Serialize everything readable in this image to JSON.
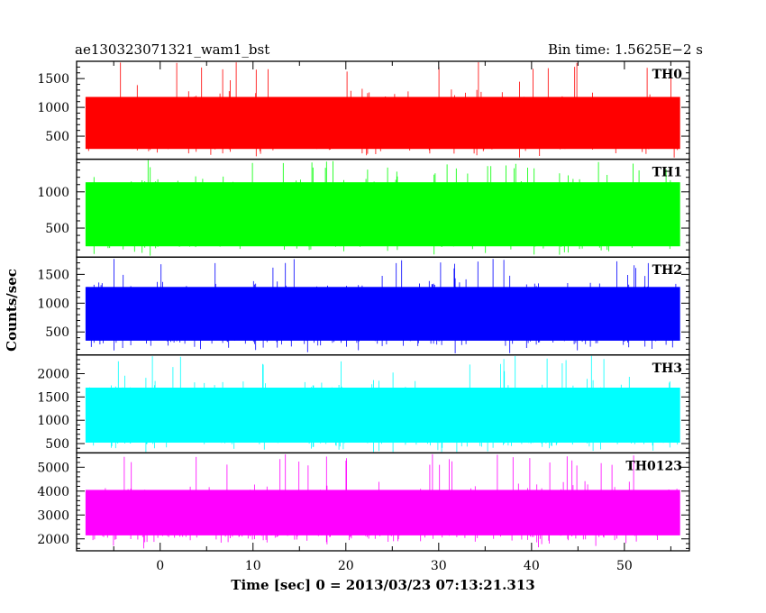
{
  "chart_data": {
    "type": "line",
    "title_left": "ae130323071321_wam1_bst",
    "title_right": "Bin time: 1.5625E−2 s",
    "xlabel": "Time [sec] 0 = 2013/03/23 07:13:21.313",
    "ylabel": "Counts/sec",
    "x_range": [
      -9,
      57
    ],
    "x_data_range": [
      -8,
      56
    ],
    "x_ticks": [
      0,
      10,
      20,
      30,
      40,
      50
    ],
    "x_tick_labels": [
      "0",
      "10",
      "20",
      "30",
      "40",
      "50"
    ],
    "grid": false,
    "panels": [
      {
        "name": "TH0",
        "color": "#ff0000",
        "y_range": [
          100,
          1800
        ],
        "y_ticks": [
          500,
          1000,
          1500
        ],
        "y_tick_labels": [
          "500",
          "1000",
          "1500"
        ],
        "mean": 750,
        "band_low": 280,
        "band_high": 1180,
        "min": 130,
        "max": 1800
      },
      {
        "name": "TH1",
        "color": "#00ff00",
        "y_range": [
          100,
          1450
        ],
        "y_ticks": [
          500,
          1000
        ],
        "y_tick_labels": [
          "500",
          "1000"
        ],
        "mean": 700,
        "band_low": 250,
        "band_high": 1130,
        "min": 120,
        "max": 1440
      },
      {
        "name": "TH2",
        "color": "#0000ff",
        "y_range": [
          100,
          1800
        ],
        "y_ticks": [
          500,
          1000,
          1500
        ],
        "y_tick_labels": [
          "500",
          "1000",
          "1500"
        ],
        "mean": 800,
        "band_low": 350,
        "band_high": 1280,
        "min": 130,
        "max": 1800
      },
      {
        "name": "TH3",
        "color": "#00ffff",
        "y_range": [
          300,
          2400
        ],
        "y_ticks": [
          500,
          1000,
          1500,
          2000
        ],
        "y_tick_labels": [
          "500",
          "1000",
          "1500",
          "2000"
        ],
        "mean": 1100,
        "band_low": 520,
        "band_high": 1700,
        "min": 320,
        "max": 2400
      },
      {
        "name": "TH0123",
        "color": "#ff00ff",
        "y_range": [
          1500,
          5600
        ],
        "y_ticks": [
          2000,
          3000,
          4000,
          5000
        ],
        "y_tick_labels": [
          "2000",
          "3000",
          "4000",
          "5000"
        ],
        "mean": 3100,
        "band_low": 2150,
        "band_high": 4050,
        "min": 1600,
        "max": 5550
      }
    ]
  }
}
